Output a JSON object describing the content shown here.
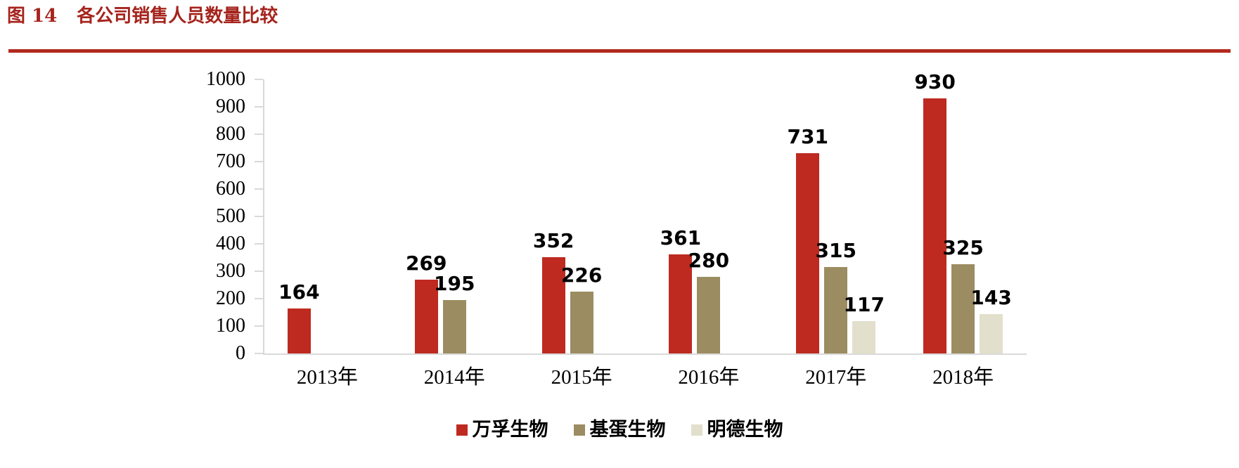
{
  "figure": {
    "label": "图 14",
    "title": "各公司销售人员数量比较"
  },
  "colors": {
    "title_red": "#A5241D",
    "rule_red": "#B2291D",
    "axis_gray": "#D9D9D9",
    "label_black": "#000000"
  },
  "chart_data": {
    "type": "bar",
    "title": "各公司销售人员数量比较",
    "categories": [
      "2013年",
      "2014年",
      "2015年",
      "2016年",
      "2017年",
      "2018年"
    ],
    "series": [
      {
        "name": "万孚生物",
        "color": "#BE2A20",
        "values": [
          164,
          269,
          352,
          361,
          731,
          930
        ]
      },
      {
        "name": "基蛋生物",
        "color": "#9B8C61",
        "values": [
          null,
          195,
          226,
          280,
          315,
          325
        ]
      },
      {
        "name": "明德生物",
        "color": "#E2DFCC",
        "values": [
          null,
          null,
          null,
          null,
          117,
          143
        ]
      }
    ],
    "xlabel": "",
    "ylabel": "",
    "ylim": [
      0,
      1000
    ],
    "yticks": [
      0,
      100,
      200,
      300,
      400,
      500,
      600,
      700,
      800,
      900,
      1000
    ],
    "grid": false,
    "legend_position": "bottom",
    "data_labels": true
  }
}
